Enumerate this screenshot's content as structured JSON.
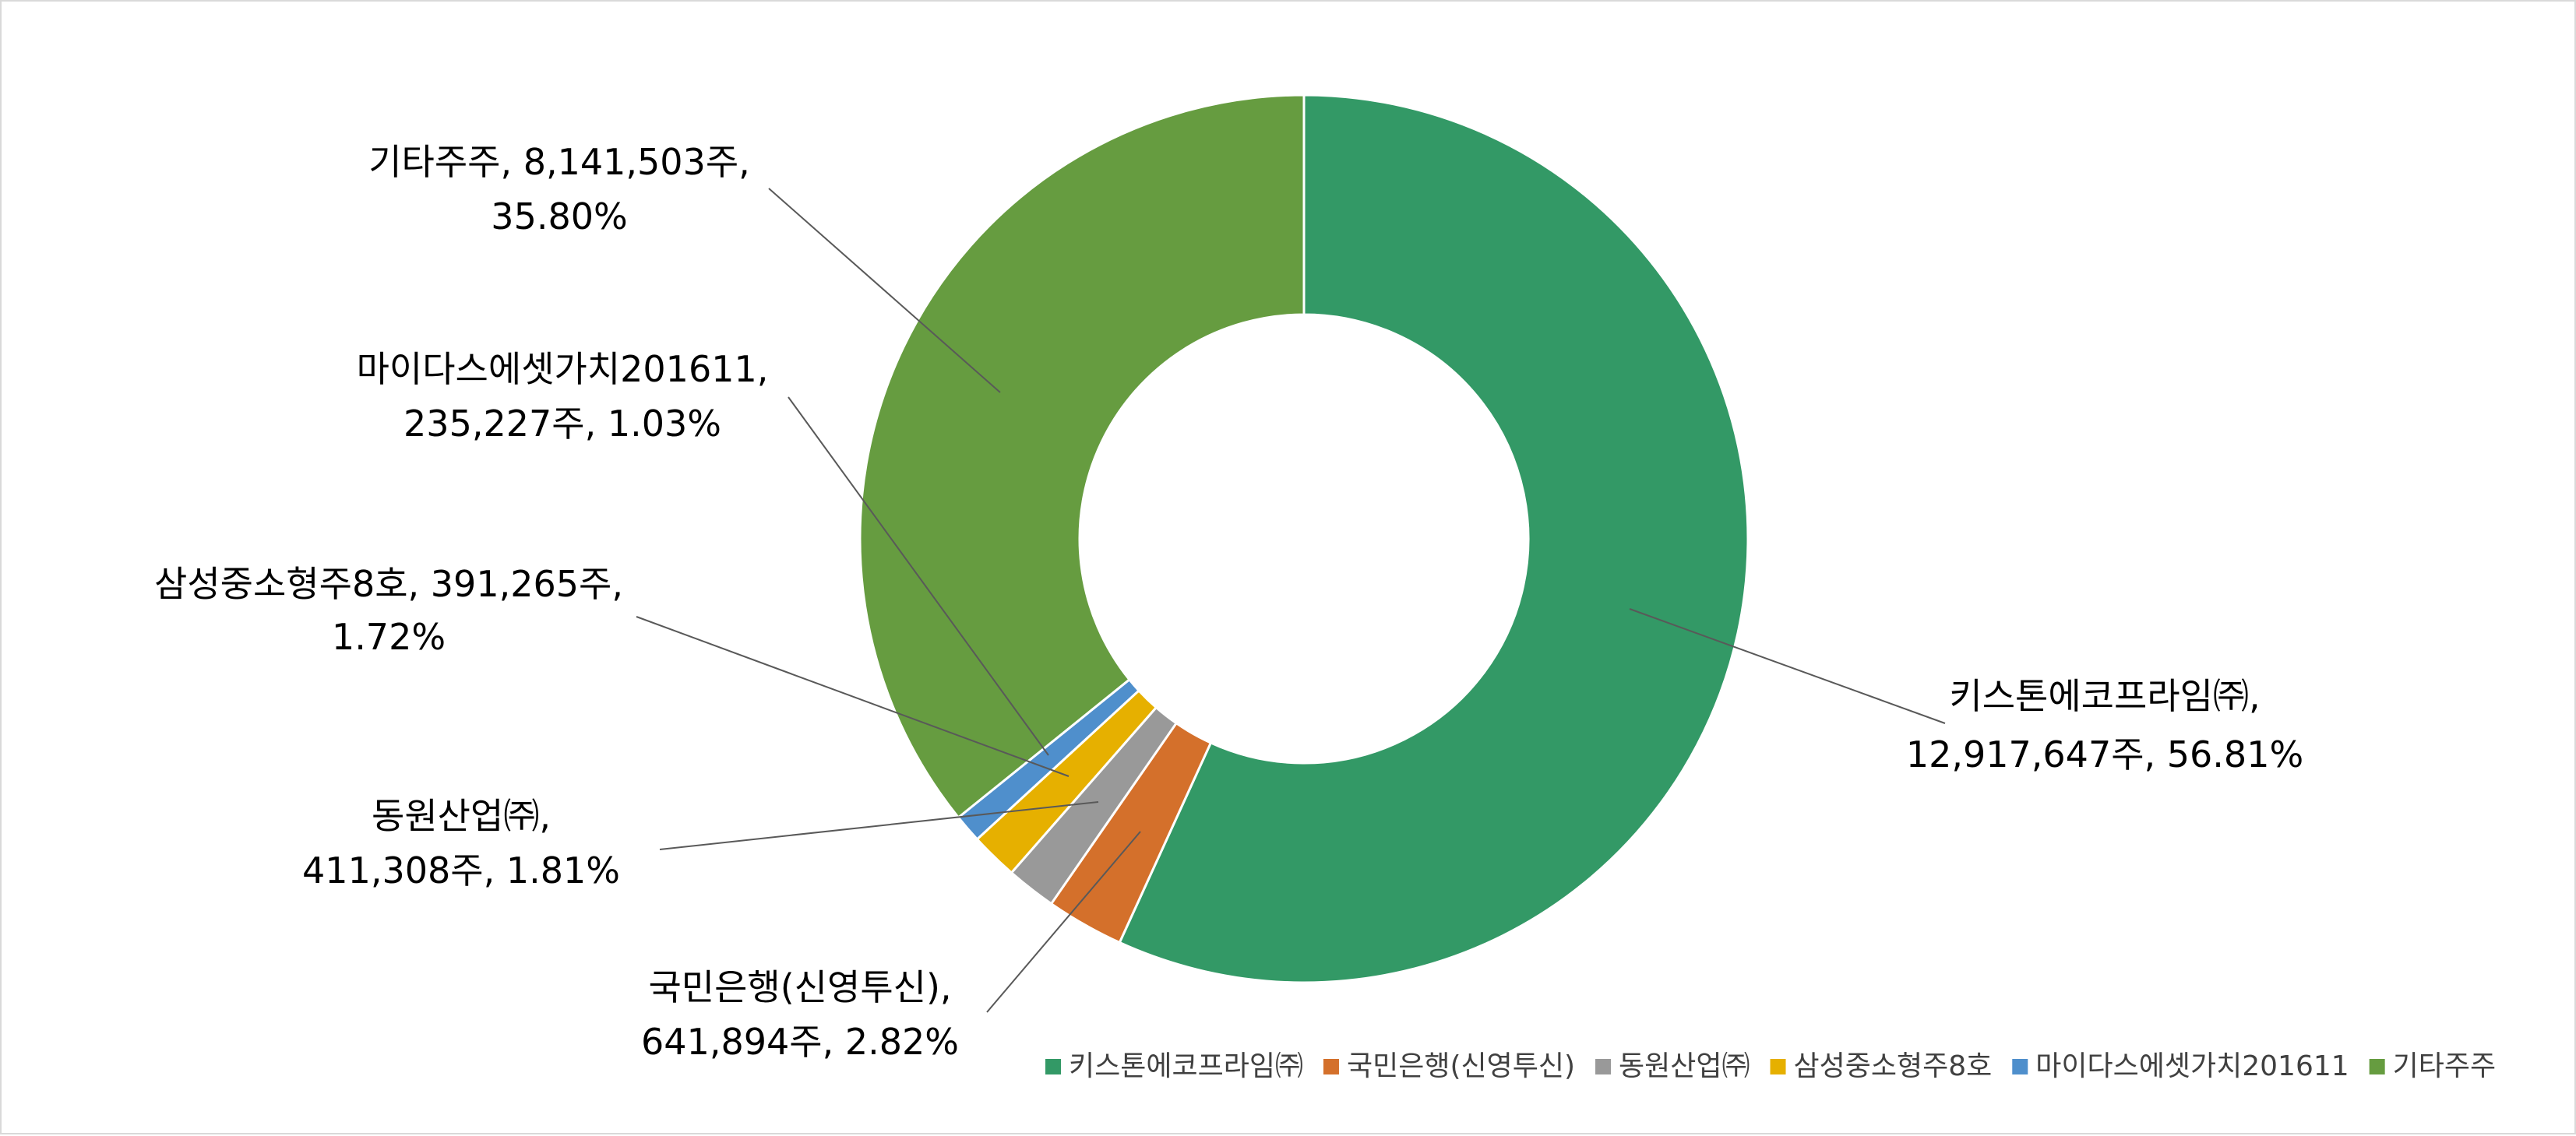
{
  "chart_data": {
    "type": "pie",
    "subtype": "donut",
    "title": "",
    "colors": {
      "series": [
        "#339966",
        "#d4702b",
        "#999999",
        "#e6b000",
        "#4f8fcc",
        "#669c40"
      ],
      "slice_border": "#ffffff",
      "leader_line": "#595959",
      "frame_border": "#d9d9d9"
    },
    "legend_position": "bottom-right",
    "slices": [
      {
        "name": "키스톤에코프라임㈜",
        "shares": 12917647,
        "percent": 56.81,
        "label_line1": "키스톤에코프라임㈜,",
        "label_line2": "12,917,647주, 56.81%"
      },
      {
        "name": "국민은행(신영투신)",
        "shares": 641894,
        "percent": 2.82,
        "label_line1": "국민은행(신영투신),",
        "label_line2": "641,894주, 2.82%"
      },
      {
        "name": "동원산업㈜",
        "shares": 411308,
        "percent": 1.81,
        "label_line1": "동원산업㈜,",
        "label_line2": "411,308주, 1.81%"
      },
      {
        "name": "삼성중소형주8호",
        "shares": 391265,
        "percent": 1.72,
        "label_line1": "삼성중소형주8호, 391,265주,",
        "label_line2": "1.72%"
      },
      {
        "name": "마이다스에셋가치201611",
        "shares": 235227,
        "percent": 1.03,
        "label_line1": "마이다스에셋가치201611,",
        "label_line2": "235,227주, 1.03%"
      },
      {
        "name": "기타주주",
        "shares": 8141503,
        "percent": 35.8,
        "label_line1": "기타주주, 8,141,503주,",
        "label_line2": "35.80%"
      }
    ]
  }
}
